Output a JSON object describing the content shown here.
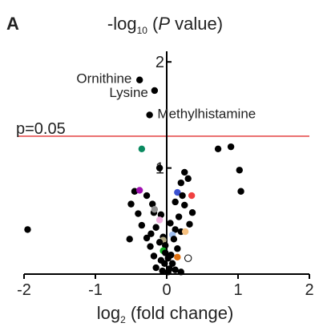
{
  "panel_label": "A",
  "chart_data": {
    "type": "scatter",
    "title": {
      "base": "-log",
      "sub": "10",
      "open": " (",
      "var": "P",
      "rest": " value)"
    },
    "xlabel": {
      "base": "log",
      "sub": "2",
      "rest": " (fold change)"
    },
    "xlim": [
      -2,
      2
    ],
    "ylim": [
      0,
      2.1
    ],
    "x_ticks": [
      -2,
      -1,
      0,
      1,
      2
    ],
    "x_tick_labels": [
      "-2",
      "-1",
      "0",
      "1",
      "2"
    ],
    "y_ticks": [
      1,
      2
    ],
    "y_tick_labels": [
      "1",
      "2"
    ],
    "threshold": {
      "y": 1.3,
      "label": "p=0.05",
      "color": "#e03030"
    },
    "annotations": [
      {
        "text": "Ornithine",
        "x": -0.4,
        "y": 1.83
      },
      {
        "text": "Lysine",
        "x": -0.17,
        "y": 1.73
      },
      {
        "text": "Methylhistamine",
        "x": -0.22,
        "y": 1.5
      }
    ],
    "points": [
      {
        "x": -0.38,
        "y": 1.83,
        "color": "#000000"
      },
      {
        "x": -0.17,
        "y": 1.73,
        "color": "#000000"
      },
      {
        "x": -0.24,
        "y": 1.5,
        "color": "#000000"
      },
      {
        "x": -0.35,
        "y": 1.18,
        "color": "#0a8a60"
      },
      {
        "x": 0.72,
        "y": 1.18,
        "color": "#000000"
      },
      {
        "x": 0.9,
        "y": 1.2,
        "color": "#000000"
      },
      {
        "x": 1.02,
        "y": 0.98,
        "color": "#000000"
      },
      {
        "x": 1.04,
        "y": 0.78,
        "color": "#000000"
      },
      {
        "x": -1.95,
        "y": 0.42,
        "color": "#000000"
      },
      {
        "x": -0.52,
        "y": 0.33,
        "color": "#000000"
      },
      {
        "x": -0.1,
        "y": 1.0,
        "color": "#000000"
      },
      {
        "x": 0.25,
        "y": 0.96,
        "color": "#000000"
      },
      {
        "x": 0.3,
        "y": 0.9,
        "color": "#000000"
      },
      {
        "x": 0.2,
        "y": 0.86,
        "color": "#000000"
      },
      {
        "x": -0.45,
        "y": 0.78,
        "color": "#000000"
      },
      {
        "x": -0.38,
        "y": 0.79,
        "color": "#a010b0"
      },
      {
        "x": -0.28,
        "y": 0.74,
        "color": "#000000"
      },
      {
        "x": 0.15,
        "y": 0.77,
        "color": "#3a50d0"
      },
      {
        "x": 0.22,
        "y": 0.74,
        "color": "#000000"
      },
      {
        "x": 0.35,
        "y": 0.74,
        "color": "#f04040"
      },
      {
        "x": -0.5,
        "y": 0.66,
        "color": "#000000"
      },
      {
        "x": -0.2,
        "y": 0.66,
        "color": "#000000"
      },
      {
        "x": 0.12,
        "y": 0.68,
        "color": "#000000"
      },
      {
        "x": 0.25,
        "y": 0.65,
        "color": "#000000"
      },
      {
        "x": -0.18,
        "y": 0.58,
        "color": "#000000"
      },
      {
        "x": 0.36,
        "y": 0.58,
        "color": "#000000"
      },
      {
        "x": -0.4,
        "y": 0.57,
        "color": "#000000"
      },
      {
        "x": -0.17,
        "y": 0.61,
        "color": "#909090"
      },
      {
        "x": -0.08,
        "y": 0.56,
        "color": "#000000"
      },
      {
        "x": 0.17,
        "y": 0.54,
        "color": "#000000"
      },
      {
        "x": -0.1,
        "y": 0.51,
        "color": "#f0b0e0"
      },
      {
        "x": 0.05,
        "y": 0.48,
        "color": "#000000"
      },
      {
        "x": -0.35,
        "y": 0.46,
        "color": "#000000"
      },
      {
        "x": 0.32,
        "y": 0.47,
        "color": "#000000"
      },
      {
        "x": -0.15,
        "y": 0.44,
        "color": "#000000"
      },
      {
        "x": 0.12,
        "y": 0.42,
        "color": "#000000"
      },
      {
        "x": 0.2,
        "y": 0.4,
        "color": "#000000"
      },
      {
        "x": 0.26,
        "y": 0.4,
        "color": "#f5c080"
      },
      {
        "x": -0.22,
        "y": 0.38,
        "color": "#000000"
      },
      {
        "x": 0.08,
        "y": 0.37,
        "color": "#a0c0f0"
      },
      {
        "x": -0.05,
        "y": 0.35,
        "color": "#000000"
      },
      {
        "x": -0.28,
        "y": 0.34,
        "color": "#000000"
      },
      {
        "x": -0.05,
        "y": 0.32,
        "color": "#b0a880"
      },
      {
        "x": 0.1,
        "y": 0.33,
        "color": "#000000"
      },
      {
        "x": -0.1,
        "y": 0.3,
        "color": "#000000"
      },
      {
        "x": -0.02,
        "y": 0.27,
        "color": "#000000"
      },
      {
        "x": -0.23,
        "y": 0.26,
        "color": "#000000"
      },
      {
        "x": 0.15,
        "y": 0.24,
        "color": "#000000"
      },
      {
        "x": -0.05,
        "y": 0.22,
        "color": "#10b020"
      },
      {
        "x": -0.02,
        "y": 0.2,
        "color": "#000000"
      },
      {
        "x": 0.06,
        "y": 0.18,
        "color": "#000000"
      },
      {
        "x": -0.18,
        "y": 0.17,
        "color": "#000000"
      },
      {
        "x": 0.02,
        "y": 0.15,
        "color": "#000000"
      },
      {
        "x": 0.15,
        "y": 0.16,
        "color": "#e07010"
      },
      {
        "x": 0.3,
        "y": 0.15,
        "color": "#ffffff"
      },
      {
        "x": -0.08,
        "y": 0.13,
        "color": "#000000"
      },
      {
        "x": -0.03,
        "y": 0.1,
        "color": "#000000"
      },
      {
        "x": 0.08,
        "y": 0.1,
        "color": "#000000"
      },
      {
        "x": -0.15,
        "y": 0.06,
        "color": "#000000"
      },
      {
        "x": 0.04,
        "y": 0.05,
        "color": "#000000"
      },
      {
        "x": 0.12,
        "y": 0.04,
        "color": "#000000"
      },
      {
        "x": -0.06,
        "y": 0.03,
        "color": "#000000"
      },
      {
        "x": 0.02,
        "y": 0.02,
        "color": "#000000"
      },
      {
        "x": 0.2,
        "y": 0.02,
        "color": "#000000"
      }
    ]
  }
}
